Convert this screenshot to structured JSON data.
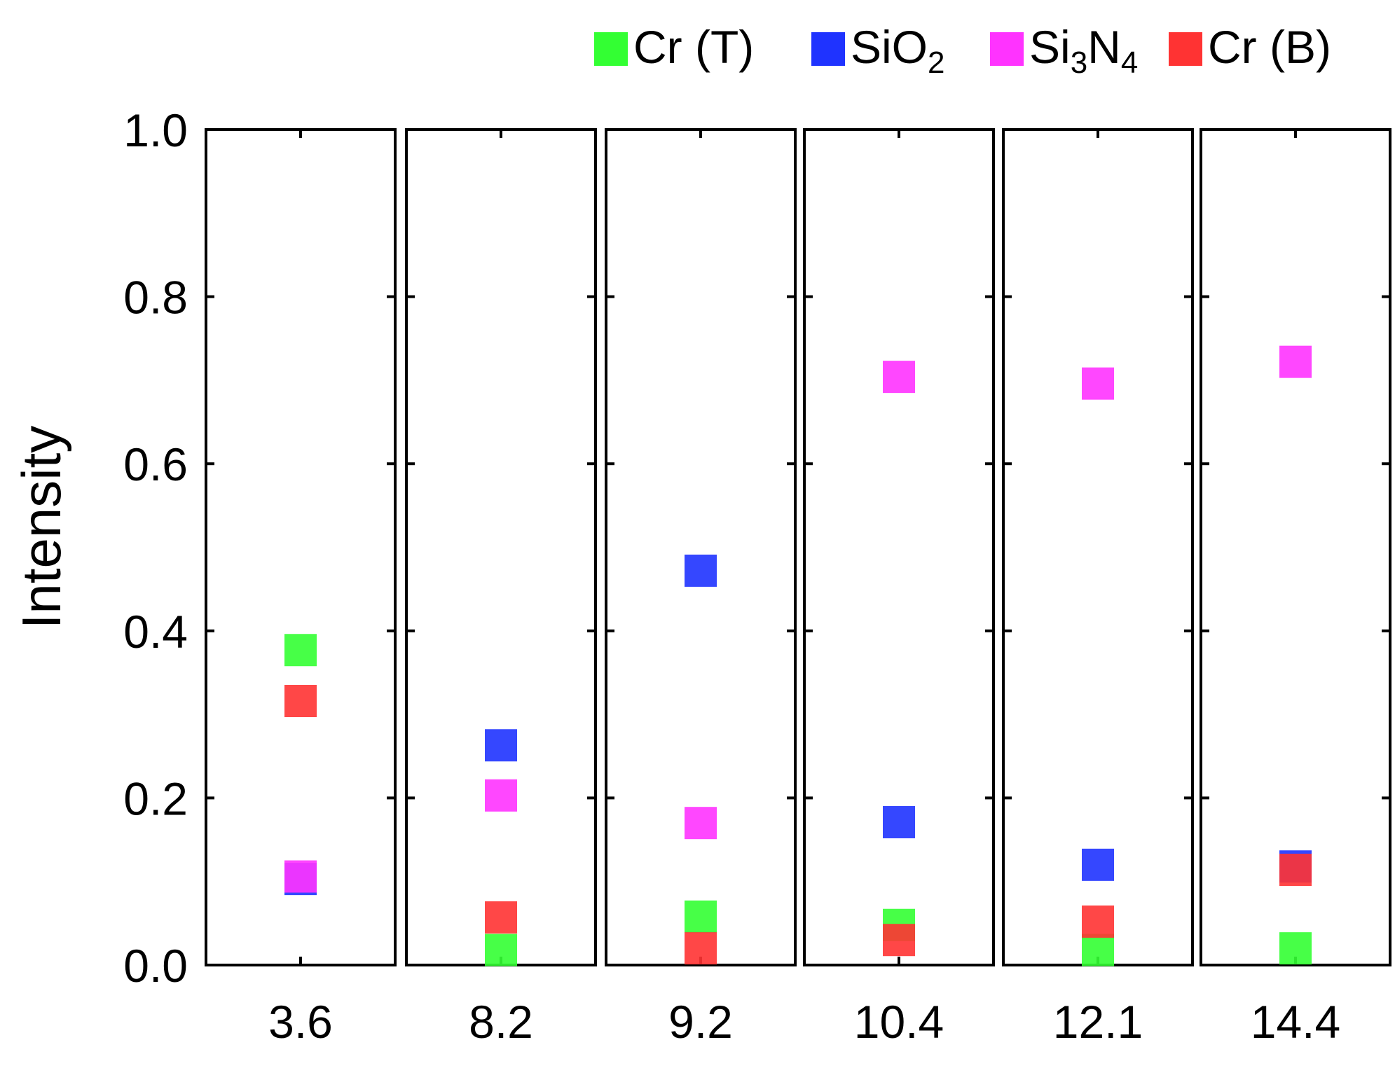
{
  "chart_data": {
    "type": "scatter",
    "title": "",
    "xlabel": "",
    "ylabel": "Intensity",
    "ylim": [
      0.0,
      1.0
    ],
    "yticks": [
      "0.0",
      "0.2",
      "0.4",
      "0.6",
      "0.8",
      "1.0"
    ],
    "panels": [
      "3.6",
      "8.2",
      "9.2",
      "10.4",
      "12.1",
      "14.4"
    ],
    "series": [
      {
        "name": "Cr (T)",
        "name_base": "Cr (T)",
        "name_subs": [],
        "color": "#33ff33",
        "values": [
          0.377,
          0.018,
          0.058,
          0.048,
          0.018,
          0.02
        ]
      },
      {
        "name": "SiO2",
        "name_base": "SiO",
        "name_subs": [
          "2"
        ],
        "color": "#1f33ff",
        "values": [
          0.103,
          0.263,
          0.472,
          0.171,
          0.12,
          0.118
        ]
      },
      {
        "name": "Si3N4",
        "name_base": "Si",
        "name_subs": [
          "3",
          "N",
          "4"
        ],
        "color": "#ff33ff",
        "values": [
          0.106,
          0.203,
          0.17,
          0.704,
          0.696,
          0.722
        ]
      },
      {
        "name": "Cr (B)",
        "name_base": "Cr (B)",
        "name_subs": [],
        "color": "#ff3333",
        "values": [
          0.316,
          0.057,
          0.02,
          0.03,
          0.052,
          0.114
        ]
      }
    ],
    "legend_position": "top-right",
    "grid": false
  }
}
